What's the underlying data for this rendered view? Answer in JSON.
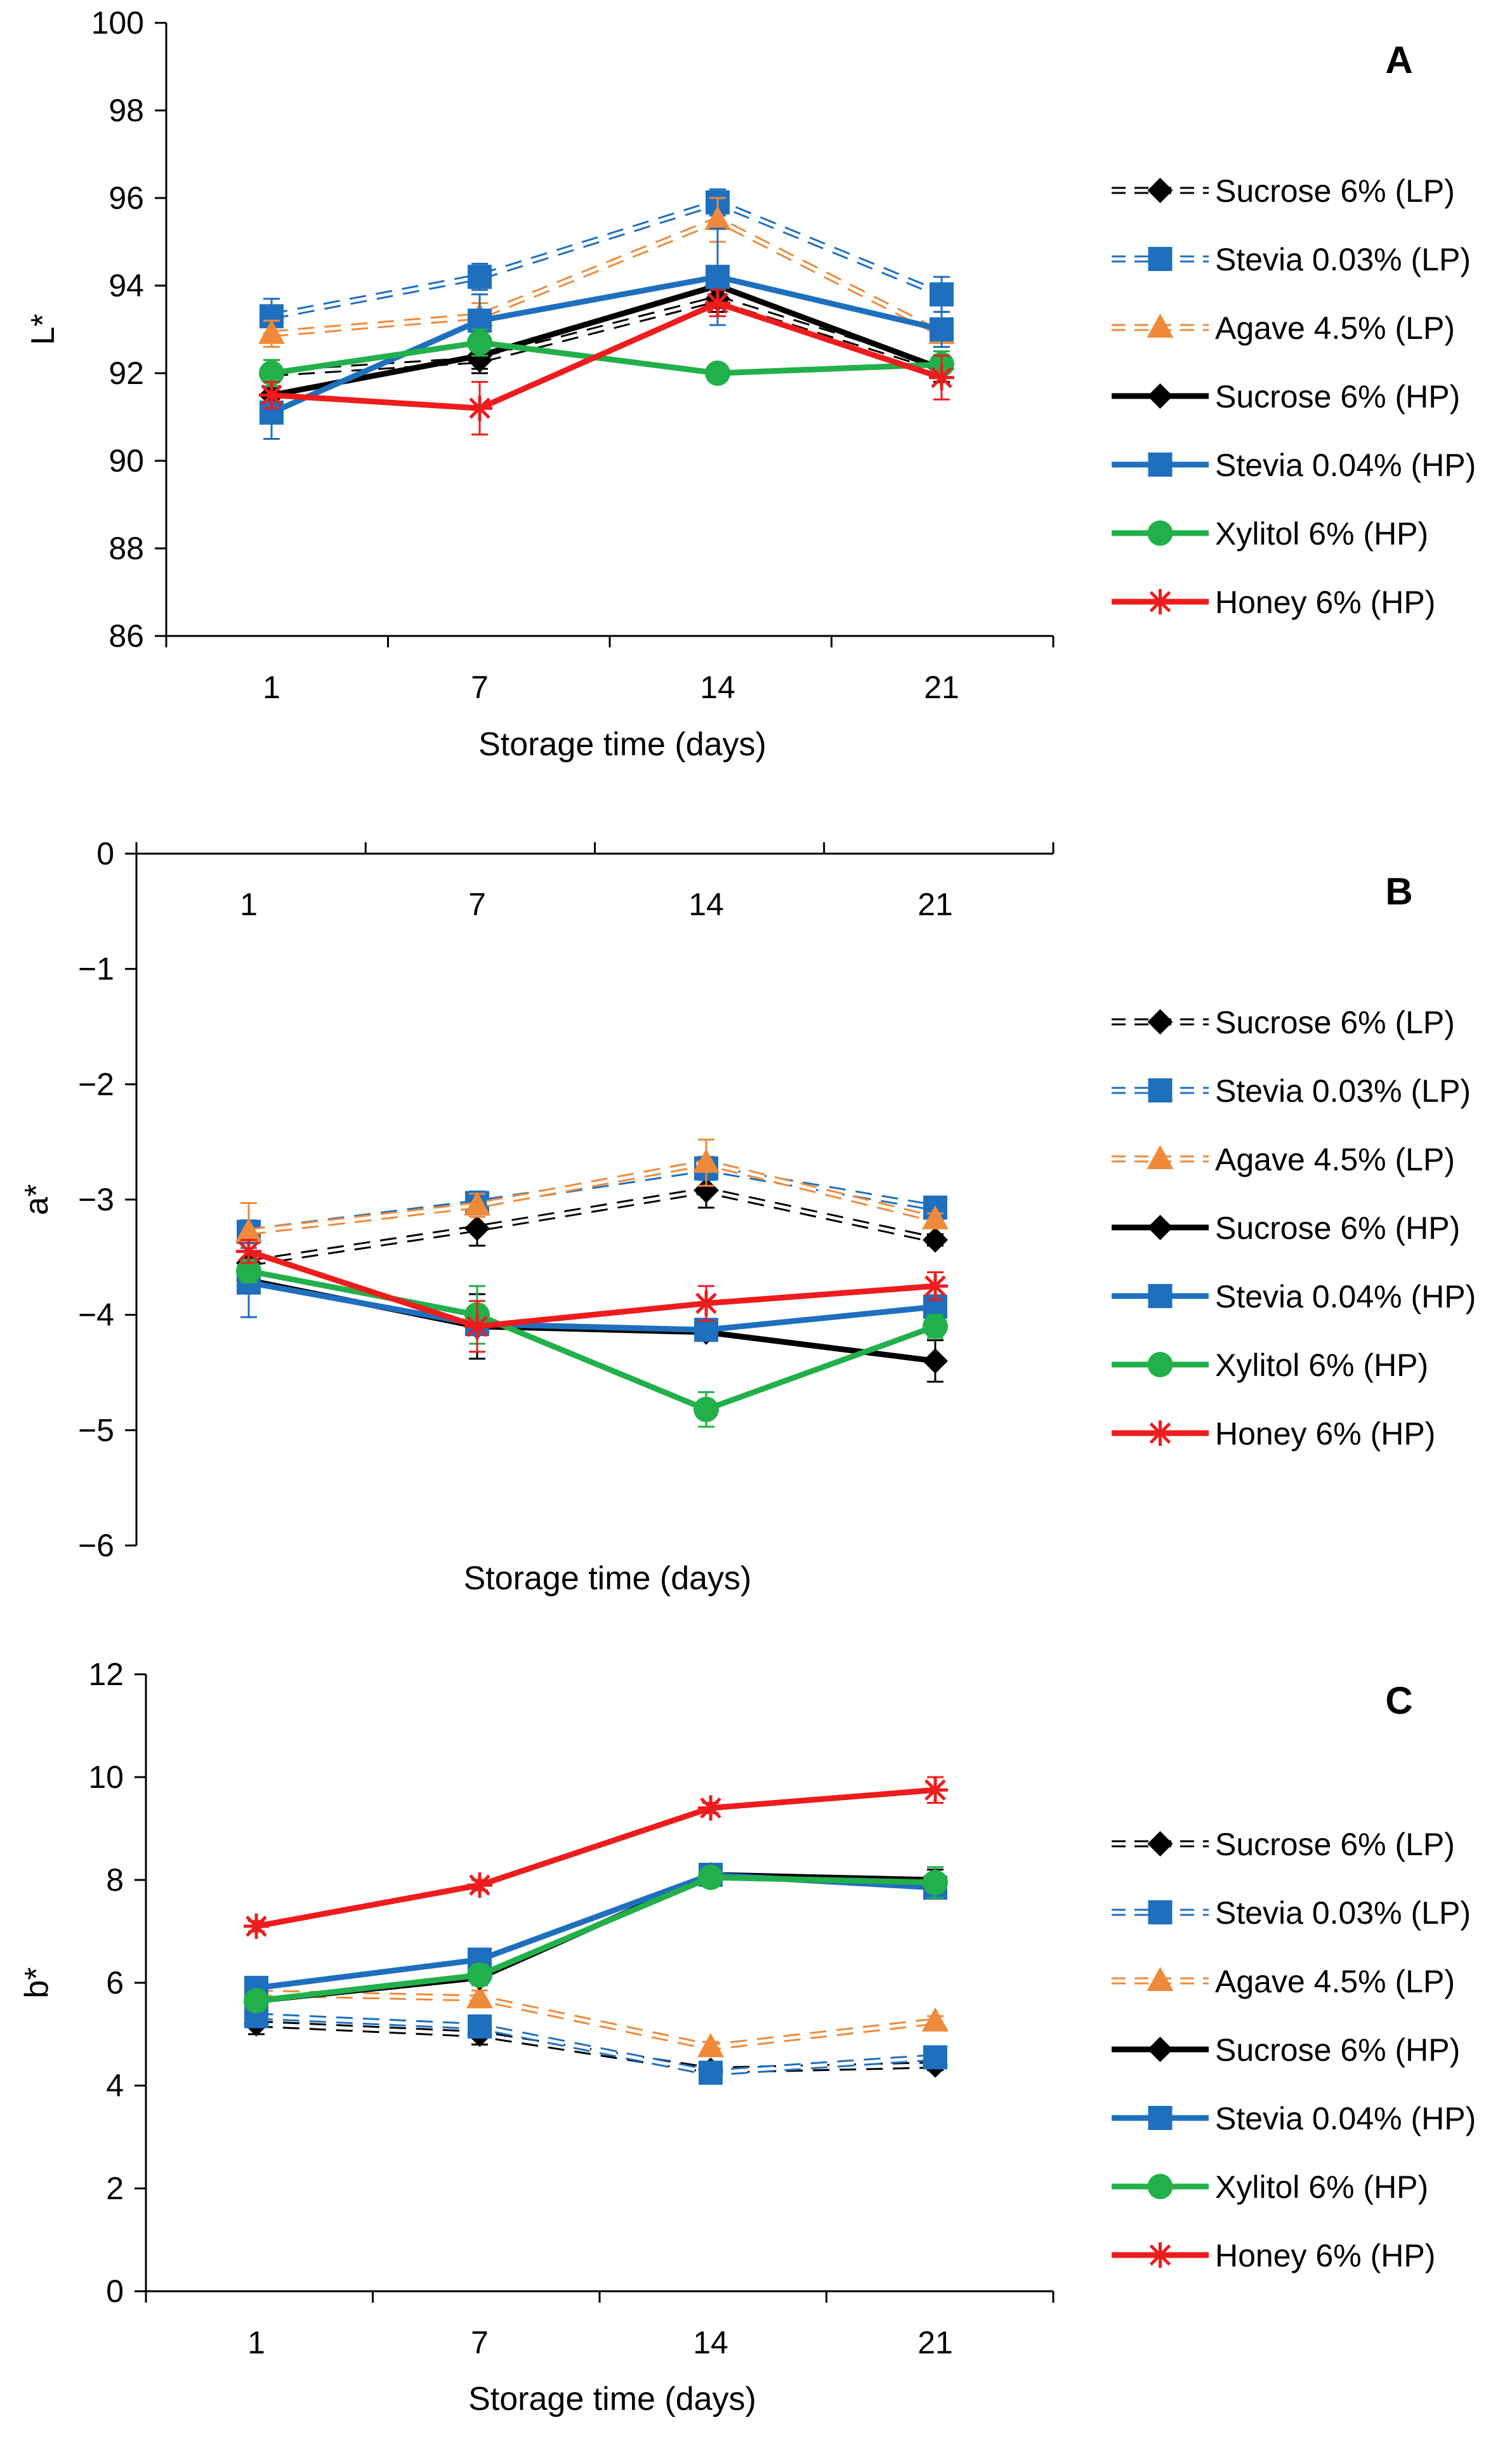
{
  "figure": {
    "series_styles": [
      {
        "name": "Sucrose 6% (LP)",
        "color": "#000000",
        "dashed": true,
        "marker": "diamond"
      },
      {
        "name": "Stevia 0.03% (LP)",
        "color": "#1f6fbf",
        "dashed": true,
        "marker": "square"
      },
      {
        "name": "Agave 4.5% (LP)",
        "color": "#ef8a3a",
        "dashed": true,
        "marker": "triangle"
      },
      {
        "name": "Sucrose 6% (HP)",
        "color": "#000000",
        "dashed": false,
        "marker": "diamond"
      },
      {
        "name": "Stevia 0.04% (HP)",
        "color": "#1f6fbf",
        "dashed": false,
        "marker": "square"
      },
      {
        "name": "Xylitol 6% (HP)",
        "color": "#22b04b",
        "dashed": false,
        "marker": "circle"
      },
      {
        "name": "Honey 6% (HP)",
        "color": "#ee1c1c",
        "dashed": false,
        "marker": "star"
      }
    ]
  },
  "chart_data": [
    {
      "panel": "A",
      "type": "line",
      "title": "",
      "xlabel": "Storage time (days)",
      "ylabel": "L*",
      "categories": [
        "1",
        "7",
        "14",
        "21"
      ],
      "ylim": [
        86,
        100
      ],
      "yticks": [
        "86",
        "88",
        "90",
        "92",
        "94",
        "96",
        "98",
        "100"
      ],
      "legend": "right",
      "series": [
        {
          "name": "Sucrose 6% (LP)",
          "values": [
            92.0,
            92.3,
            93.7,
            92.1
          ],
          "errors": [
            0.3,
            0.3,
            0.3,
            0.3
          ]
        },
        {
          "name": "Stevia 0.03% (LP)",
          "values": [
            93.3,
            94.2,
            95.9,
            93.8
          ],
          "errors": [
            0.4,
            0.3,
            0.3,
            0.4
          ]
        },
        {
          "name": "Agave 4.5% (LP)",
          "values": [
            92.9,
            93.3,
            95.5,
            92.9
          ],
          "errors": [
            0.3,
            0.3,
            0.5,
            0.3
          ]
        },
        {
          "name": "Sucrose 6% (HP)",
          "values": [
            91.5,
            92.4,
            94.0,
            92.1
          ],
          "errors": [
            0.3,
            0.3,
            0.3,
            0.3
          ]
        },
        {
          "name": "Stevia 0.04% (HP)",
          "values": [
            91.1,
            93.2,
            94.2,
            93.0
          ],
          "errors": [
            0.6,
            0.6,
            1.1,
            0.4
          ]
        },
        {
          "name": "Xylitol 6% (HP)",
          "values": [
            92.0,
            92.7,
            92.0,
            92.2
          ],
          "errors": [
            0.3,
            0.3,
            0.2,
            0.3
          ]
        },
        {
          "name": "Honey 6% (HP)",
          "values": [
            91.5,
            91.2,
            93.6,
            91.9
          ],
          "errors": [
            0.3,
            0.6,
            0.3,
            0.5
          ]
        }
      ]
    },
    {
      "panel": "B",
      "type": "line",
      "title": "",
      "xlabel": "Storage time (days)",
      "ylabel": "a*",
      "categories": [
        "1",
        "7",
        "14",
        "21"
      ],
      "ylim": [
        -6,
        0
      ],
      "yticks": [
        "0",
        "−1",
        "−2",
        "−3",
        "−4",
        "−5",
        "−6"
      ],
      "legend": "right",
      "series": [
        {
          "name": "Sucrose 6% (LP)",
          "values": [
            -3.55,
            -3.25,
            -2.92,
            -3.35
          ],
          "errors": [
            0.1,
            0.15,
            0.15,
            0.05
          ]
        },
        {
          "name": "Stevia 0.03% (LP)",
          "values": [
            -3.28,
            -3.03,
            -2.73,
            -3.07
          ],
          "errors": [
            0.1,
            0.1,
            0.1,
            0.05
          ]
        },
        {
          "name": "Agave 4.5% (LP)",
          "values": [
            -3.28,
            -3.05,
            -2.68,
            -3.17
          ],
          "errors": [
            0.25,
            0.1,
            0.2,
            0.05
          ]
        },
        {
          "name": "Sucrose 6% (HP)",
          "values": [
            -3.7,
            -4.1,
            -4.15,
            -4.4
          ],
          "errors": [
            0.1,
            0.28,
            0.05,
            0.18
          ]
        },
        {
          "name": "Stevia 0.04% (HP)",
          "values": [
            -3.72,
            -4.08,
            -4.13,
            -3.93
          ],
          "errors": [
            0.3,
            0.05,
            0.05,
            0.1
          ]
        },
        {
          "name": "Xylitol 6% (HP)",
          "values": [
            -3.62,
            -4.0,
            -4.82,
            -4.1
          ],
          "errors": [
            0.1,
            0.25,
            0.15,
            0.1
          ]
        },
        {
          "name": "Honey 6% (HP)",
          "values": [
            -3.45,
            -4.1,
            -3.9,
            -3.75
          ],
          "errors": [
            0.1,
            0.22,
            0.15,
            0.12
          ]
        }
      ]
    },
    {
      "panel": "C",
      "type": "line",
      "title": "",
      "xlabel": "Storage time (days)",
      "ylabel": "b*",
      "categories": [
        "1",
        "7",
        "14",
        "21"
      ],
      "ylim": [
        0,
        12
      ],
      "yticks": [
        "0",
        "2",
        "4",
        "6",
        "8",
        "10",
        "12"
      ],
      "legend": "right",
      "series": [
        {
          "name": "Sucrose 6% (LP)",
          "values": [
            5.2,
            5.0,
            4.3,
            4.4
          ],
          "errors": [
            0.2,
            0.2,
            0.1,
            0.1
          ]
        },
        {
          "name": "Stevia 0.03% (LP)",
          "values": [
            5.35,
            5.15,
            4.25,
            4.55
          ],
          "errors": [
            0.15,
            0.15,
            0.1,
            0.1
          ]
        },
        {
          "name": "Agave 4.5% (LP)",
          "values": [
            5.8,
            5.7,
            4.75,
            5.25
          ],
          "errors": [
            0.15,
            0.15,
            0.1,
            0.1
          ]
        },
        {
          "name": "Sucrose 6% (HP)",
          "values": [
            5.65,
            6.1,
            8.1,
            8.0
          ],
          "errors": [
            0.15,
            0.15,
            0.15,
            0.2
          ]
        },
        {
          "name": "Stevia 0.04% (HP)",
          "values": [
            5.9,
            6.45,
            8.1,
            7.85
          ],
          "errors": [
            0.15,
            0.2,
            0.15,
            0.2
          ]
        },
        {
          "name": "Xylitol 6% (HP)",
          "values": [
            5.65,
            6.15,
            8.05,
            7.95
          ],
          "errors": [
            0.15,
            0.2,
            0.15,
            0.3
          ]
        },
        {
          "name": "Honey 6% (HP)",
          "values": [
            7.1,
            7.9,
            9.4,
            9.75
          ],
          "errors": [
            0.1,
            0.1,
            0.1,
            0.25
          ]
        }
      ]
    }
  ]
}
